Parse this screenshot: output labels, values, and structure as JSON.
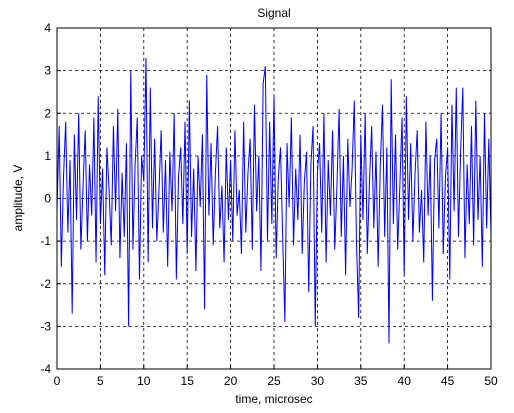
{
  "chart_data": {
    "type": "line",
    "title": "Signal",
    "xlabel": "time, microsec",
    "ylabel": "amplitude, V",
    "x": [
      0,
      0.25,
      0.5,
      0.75,
      1,
      1.25,
      1.5,
      1.75,
      2,
      2.25,
      2.5,
      2.75,
      3,
      3.25,
      3.5,
      3.75,
      4,
      4.25,
      4.5,
      4.75,
      5,
      5.25,
      5.5,
      5.75,
      6,
      6.25,
      6.5,
      6.75,
      7,
      7.25,
      7.5,
      7.75,
      8,
      8.25,
      8.5,
      8.75,
      9,
      9.25,
      9.5,
      9.75,
      10,
      10.25,
      10.5,
      10.75,
      11,
      11.25,
      11.5,
      11.75,
      12,
      12.25,
      12.5,
      12.75,
      13,
      13.25,
      13.5,
      13.75,
      14,
      14.25,
      14.5,
      14.75,
      15,
      15.25,
      15.5,
      15.75,
      16,
      16.25,
      16.5,
      16.75,
      17,
      17.25,
      17.5,
      17.75,
      18,
      18.25,
      18.5,
      18.75,
      19,
      19.25,
      19.5,
      19.75,
      20,
      20.25,
      20.5,
      20.75,
      21,
      21.25,
      21.5,
      21.75,
      22,
      22.25,
      22.5,
      22.75,
      23,
      23.25,
      23.5,
      23.75,
      24,
      24.25,
      24.5,
      24.75,
      25,
      25.25,
      25.5,
      25.75,
      26,
      26.25,
      26.5,
      26.75,
      27,
      27.25,
      27.5,
      27.75,
      28,
      28.25,
      28.5,
      28.75,
      29,
      29.25,
      29.5,
      29.75,
      30,
      30.25,
      30.5,
      30.75,
      31,
      31.25,
      31.5,
      31.75,
      32,
      32.25,
      32.5,
      32.75,
      33,
      33.25,
      33.5,
      33.75,
      34,
      34.25,
      34.5,
      34.75,
      35,
      35.25,
      35.5,
      35.75,
      36,
      36.25,
      36.5,
      36.75,
      37,
      37.25,
      37.5,
      37.75,
      38,
      38.25,
      38.5,
      38.75,
      39,
      39.25,
      39.5,
      39.75,
      40,
      40.25,
      40.5,
      40.75,
      41,
      41.25,
      41.5,
      41.75,
      42,
      42.25,
      42.5,
      42.75,
      43,
      43.25,
      43.5,
      43.75,
      44,
      44.25,
      44.5,
      44.75,
      45,
      45.25,
      45.5,
      45.75,
      46,
      46.25,
      46.5,
      46.75,
      47,
      47.25,
      47.5,
      47.75,
      48,
      48.25,
      48.5,
      48.75,
      49,
      49.25,
      49.5,
      49.75,
      50
    ],
    "series": [
      {
        "color": "#0000ff",
        "values": [
          -0.3,
          1.7,
          -1.6,
          0.5,
          1.8,
          -0.8,
          0.9,
          -2.7,
          1.5,
          -0.5,
          2.0,
          -1.2,
          0.3,
          1.6,
          -1.0,
          0.8,
          -0.4,
          1.9,
          -1.5,
          2.4,
          -0.6,
          0.7,
          -1.8,
          1.2,
          0.2,
          -1.1,
          1.7,
          -0.3,
          2.1,
          -1.4,
          0.6,
          -0.9,
          1.3,
          -3.0,
          3.0,
          -1.2,
          0.8,
          1.9,
          -1.9,
          1.0,
          0.4,
          3.3,
          -1.5,
          2.6,
          -0.7,
          1.4,
          -1.0,
          0.2,
          1.6,
          -0.8,
          0.9,
          -1.6,
          1.1,
          -0.3,
          2.0,
          -1.9,
          0.5,
          1.2,
          -0.6,
          1.8,
          -1.3,
          2.3,
          -0.9,
          0.7,
          -1.7,
          1.0,
          -0.2,
          1.5,
          -2.6,
          2.9,
          -0.4,
          1.3,
          -1.1,
          0.6,
          1.7,
          -0.7,
          0.3,
          -1.5,
          1.2,
          -0.5,
          0.9,
          -1.0,
          1.6,
          -0.4,
          0.2,
          -1.3,
          1.8,
          -0.8,
          0.6,
          1.4,
          -1.2,
          2.2,
          -0.3,
          1.0,
          -1.7,
          2.7,
          3.1,
          -1.0,
          1.8,
          -0.6,
          2.4,
          -1.4,
          0.5,
          1.2,
          -0.9,
          -2.9,
          1.3,
          -0.2,
          1.9,
          -1.1,
          0.7,
          -0.5,
          1.5,
          -1.3,
          0.4,
          1.1,
          -2.2,
          0.8,
          1.7,
          -3.0,
          0.6,
          1.3,
          -0.8,
          2.0,
          -1.5,
          0.9,
          -0.4,
          1.6,
          -1.2,
          0.3,
          2.1,
          -0.9,
          1.0,
          -1.8,
          1.4,
          -0.2,
          0.7,
          2.3,
          -1.0,
          -2.8,
          1.5,
          -0.5,
          2.0,
          -1.3,
          0.4,
          1.7,
          -0.7,
          1.1,
          -1.6,
          0.8,
          2.2,
          -0.9,
          1.2,
          -3.4,
          2.8,
          -0.6,
          1.5,
          -1.2,
          0.3,
          1.9,
          -1.8,
          2.4,
          -0.5,
          1.3,
          -1.0,
          0.6,
          1.6,
          -0.8,
          0.2,
          -1.5,
          1.8,
          -0.4,
          1.0,
          -2.4,
          0.9,
          1.4,
          -0.7,
          2.0,
          -1.3,
          0.5,
          1.2,
          -1.9,
          2.2,
          -0.3,
          2.6,
          -0.9,
          1.1,
          2.6,
          -1.4,
          0.8,
          -0.6,
          1.7,
          -1.1,
          2.3,
          -0.5,
          1.0,
          -1.6,
          2.0,
          -0.7,
          1.4,
          -0.9
        ]
      }
    ],
    "xlim": [
      0,
      50
    ],
    "xticks": [
      0,
      5,
      10,
      15,
      20,
      25,
      30,
      35,
      40,
      45,
      50
    ],
    "ylim": [
      -4,
      4
    ],
    "yticks": [
      -4,
      -3,
      -2,
      -1,
      0,
      1,
      2,
      3,
      4
    ],
    "grid": true
  }
}
